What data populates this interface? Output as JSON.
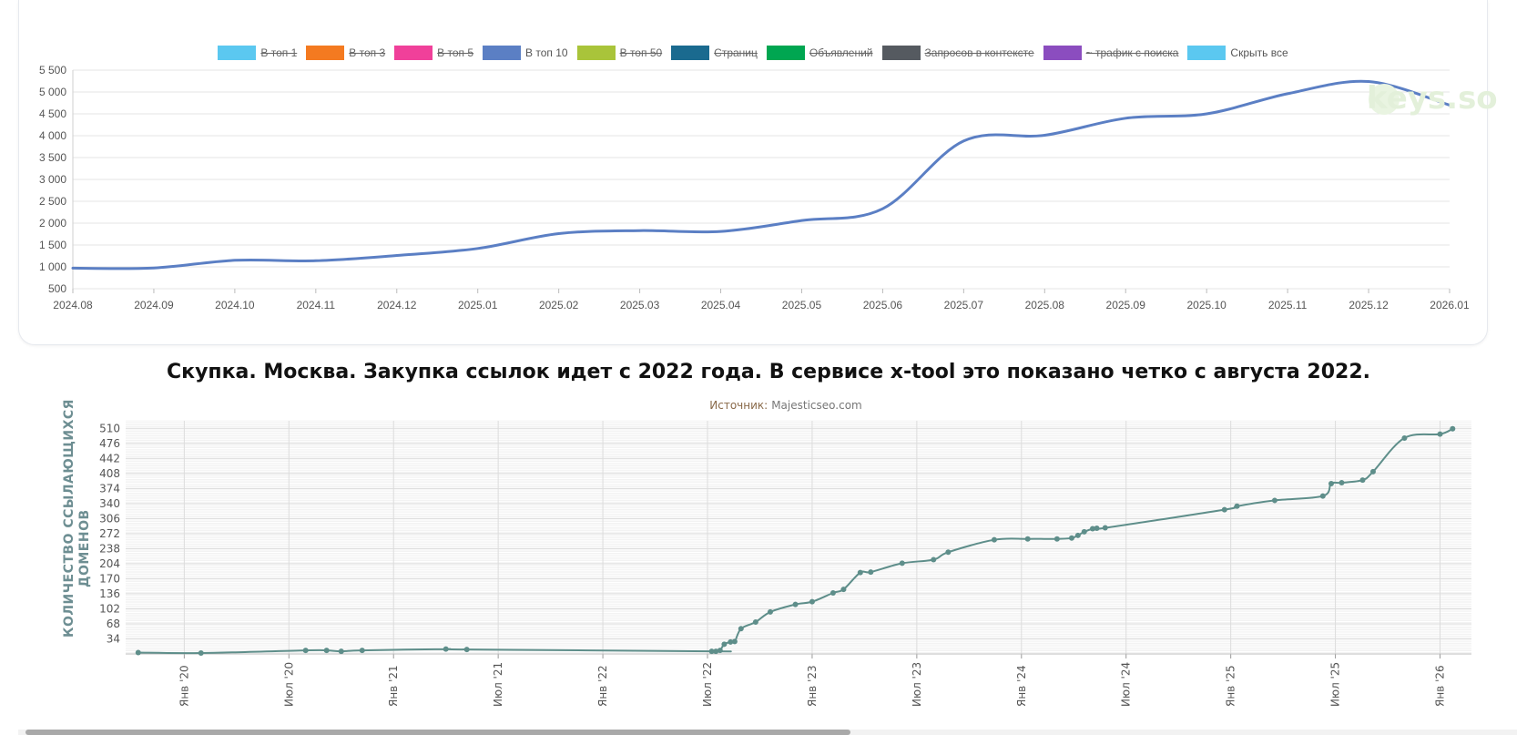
{
  "top_chart": {
    "legend": [
      {
        "label": "В топ 1",
        "color": "#5bc8f0",
        "active": false
      },
      {
        "label": "В топ 3",
        "color": "#f47a20",
        "active": false
      },
      {
        "label": "В топ 5",
        "color": "#f0409a",
        "active": false
      },
      {
        "label": "В топ 10",
        "color": "#5b7fc4",
        "active": true
      },
      {
        "label": "В топ 50",
        "color": "#a9c43a",
        "active": false
      },
      {
        "label": "Страниц",
        "color": "#1a6a8f",
        "active": false
      },
      {
        "label": "Объявлений",
        "color": "#00a651",
        "active": false
      },
      {
        "label": "Запросов в контексте",
        "color": "#555a60",
        "active": false
      },
      {
        "label": "~ трафик с поиска",
        "color": "#8b4dbf",
        "active": false
      },
      {
        "label": "Скрыть все",
        "color": "#5bc8f0",
        "active": true
      }
    ],
    "watermark": "keys.so"
  },
  "headline": "Скупка. Москва. Закупка ссылок идет с 2022 года. В сервисе x-tool это показано четко с августа 2022.",
  "bottom_chart": {
    "source_label": "Источник:",
    "source_value": "Majesticseo.com",
    "ylabel_line1": "КОЛИЧЕСТВО ССЫЛАЮЩИХСЯ",
    "ylabel_line2": "ДОМЕНОВ"
  },
  "chart_data": [
    {
      "type": "line",
      "x": [
        "2024.08",
        "2024.09",
        "2024.10",
        "2024.11",
        "2024.12",
        "2025.01",
        "2025.02",
        "2025.03",
        "2025.04",
        "2025.05",
        "2025.06",
        "2025.07",
        "2025.08",
        "2025.09",
        "2025.10",
        "2025.11",
        "2025.12",
        "2026.01"
      ],
      "series": [
        {
          "name": "В топ 10",
          "color": "#5b7fc4",
          "values": [
            970,
            975,
            1150,
            1140,
            1260,
            1420,
            1760,
            1830,
            1810,
            2060,
            2330,
            3880,
            4010,
            4400,
            4500,
            4960,
            5240,
            4700
          ]
        }
      ],
      "y_ticks": [
        500,
        1000,
        1500,
        2000,
        2500,
        3000,
        3500,
        4000,
        4500,
        5000,
        5500
      ],
      "y_tick_labels": [
        "500",
        "1 000",
        "1 500",
        "2 000",
        "2 500",
        "3 000",
        "3 500",
        "4 000",
        "4 500",
        "5 000",
        "5 500"
      ],
      "ylim": [
        500,
        5500
      ],
      "grid": true,
      "legend_position": "top"
    },
    {
      "type": "line",
      "x_tick_labels": [
        "Янв '20",
        "Июл '20",
        "Янв '21",
        "Июл '21",
        "Янв '22",
        "Июл '22",
        "Янв '23",
        "Июл '23",
        "Янв '24",
        "Июл '24",
        "Янв '25",
        "Июл '25",
        "Янв '26"
      ],
      "x_tick_dates": [
        2020.0,
        2020.5,
        2021.0,
        2021.5,
        2022.0,
        2022.5,
        2023.0,
        2023.5,
        2024.0,
        2024.5,
        2025.0,
        2025.5,
        2026.0
      ],
      "y_ticks": [
        34,
        68,
        102,
        136,
        170,
        204,
        238,
        272,
        306,
        340,
        374,
        408,
        442,
        476,
        510
      ],
      "ylim": [
        0,
        527
      ],
      "xlim": [
        2019.72,
        2026.15
      ],
      "grid": true,
      "color": "#5e8e8a",
      "series": [
        {
          "x": [
            2019.78,
            2020.08,
            2020.58,
            2020.68,
            2020.75,
            2020.85,
            2021.25,
            2021.35,
            2022.52,
            2022.54,
            2022.56,
            2022.58,
            2022.61,
            2022.63,
            2022.66,
            2022.73,
            2022.8,
            2022.92,
            2023.0,
            2023.1,
            2023.15,
            2023.23,
            2023.28,
            2023.43,
            2023.58,
            2023.65,
            2023.87,
            2024.03,
            2024.17,
            2024.24,
            2024.27,
            2024.3,
            2024.34,
            2024.36,
            2024.4,
            2024.97,
            2025.03,
            2025.21,
            2025.44,
            2025.48,
            2025.53,
            2025.63,
            2025.68,
            2025.83,
            2026.0,
            2026.06
          ],
          "y": [
            3,
            2,
            8,
            8,
            6,
            8,
            11,
            10,
            6,
            6,
            8,
            22,
            27,
            28,
            57,
            72,
            95,
            112,
            118,
            138,
            146,
            184,
            185,
            205,
            213,
            230,
            258,
            260,
            260,
            262,
            268,
            276,
            283,
            284,
            285,
            326,
            334,
            347,
            357,
            385,
            387,
            393,
            412,
            488,
            497,
            509
          ]
        }
      ]
    }
  ]
}
